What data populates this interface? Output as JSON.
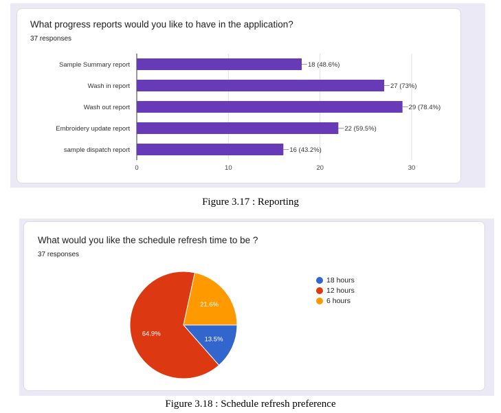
{
  "figure1": {
    "question": "What progress reports would you like to have in the application?",
    "responses": "37 responses",
    "caption": "Figure 3.17 : Reporting"
  },
  "figure2": {
    "question": "What would you like the schedule refresh time to be ?",
    "responses": "37 responses",
    "caption": "Figure 3.18 : Schedule refresh preference"
  },
  "colors": {
    "bar": "#673ab7",
    "pie": [
      "#3366cc",
      "#dc3912",
      "#ff9900"
    ],
    "panel": "#ece9f6"
  },
  "chart_data": [
    {
      "type": "bar",
      "orientation": "horizontal",
      "categories": [
        "Sample Summary report",
        "Wash in report",
        "Wash out report",
        "Embroidery update report",
        "sample dispatch report"
      ],
      "values": [
        18,
        27,
        29,
        22,
        16
      ],
      "data_labels": [
        "18 (48.6%)",
        "27 (73%)",
        "29 (78.4%)",
        "22 (59.5%)",
        "16 (43.2%)"
      ],
      "xlim": [
        0,
        30
      ],
      "xticks": [
        0,
        10,
        20,
        30
      ],
      "grid": true
    },
    {
      "type": "pie",
      "labels": [
        "18 hours",
        "12 hours",
        "6 hours"
      ],
      "values": [
        13.5,
        64.9,
        21.6
      ],
      "slice_labels": [
        "13.5%",
        "64.9%",
        "21.6%"
      ],
      "legend": "right"
    }
  ]
}
